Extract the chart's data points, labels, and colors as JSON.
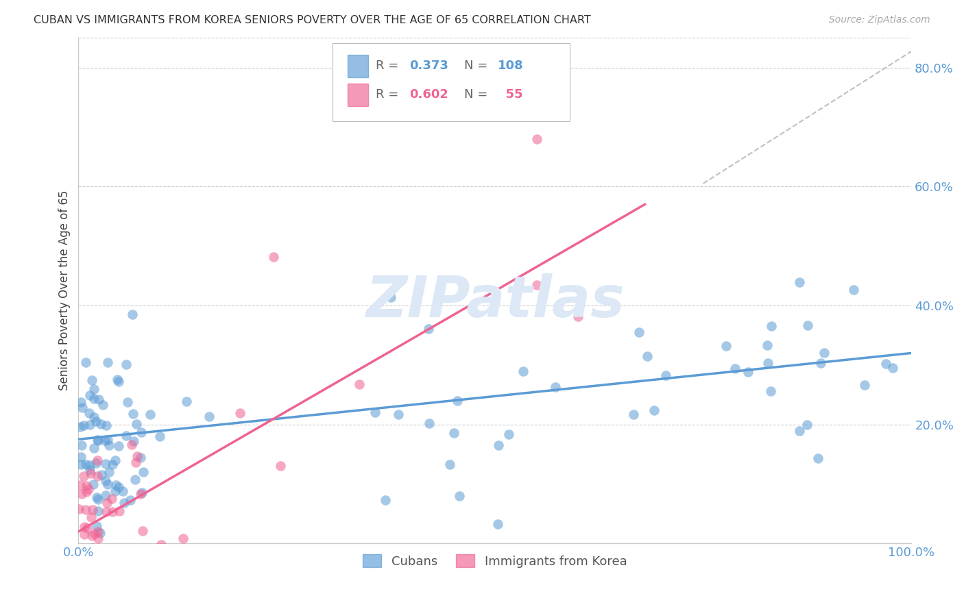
{
  "title": "CUBAN VS IMMIGRANTS FROM KOREA SENIORS POVERTY OVER THE AGE OF 65 CORRELATION CHART",
  "source": "Source: ZipAtlas.com",
  "ylabel": "Seniors Poverty Over the Age of 65",
  "xlim": [
    0.0,
    1.0
  ],
  "ylim": [
    0.0,
    0.85
  ],
  "yticks": [
    0.2,
    0.4,
    0.6,
    0.8
  ],
  "ytick_labels": [
    "20.0%",
    "40.0%",
    "60.0%",
    "80.0%"
  ],
  "xtick_labels": [
    "0.0%",
    "100.0%"
  ],
  "xtick_positions": [
    0.0,
    1.0
  ],
  "watermark": "ZIPatlas",
  "cuban_line_x": [
    0.0,
    1.0
  ],
  "cuban_line_y": [
    0.175,
    0.32
  ],
  "korea_line_x": [
    0.0,
    0.68
  ],
  "korea_line_y": [
    0.02,
    0.57
  ],
  "diagonal_line_x": [
    0.75,
    1.02
  ],
  "diagonal_line_y": [
    0.605,
    0.845
  ],
  "blue_color": "#5b9bd5",
  "pink_color": "#f06292",
  "diagonal_color": "#c0c0c0",
  "background_color": "#ffffff",
  "grid_color": "#cccccc",
  "title_color": "#333333",
  "axis_label_color": "#444444",
  "tick_label_color": "#5b9bd5",
  "watermark_color": "#dce8f5",
  "R_cubans": "0.373",
  "N_cubans": "108",
  "R_korea": "0.602",
  "N_korea": "55"
}
